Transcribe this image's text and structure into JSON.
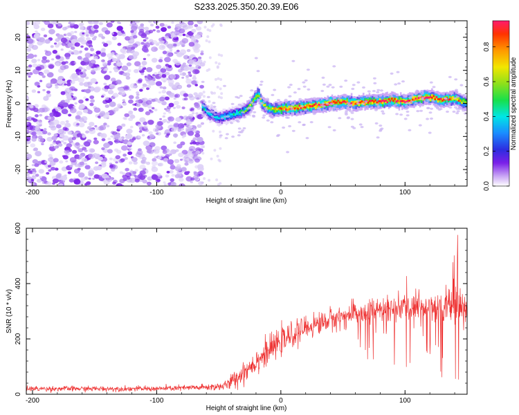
{
  "title": "S233.2025.350.20.39.E06",
  "chart_data": [
    {
      "type": "heatmap",
      "xlabel": "Height of straight line (km)",
      "ylabel": "Frequency (Hz)",
      "xlim": [
        -205,
        150
      ],
      "ylim": [
        -25,
        25
      ],
      "x_ticks": [
        -200,
        -100,
        0,
        100
      ],
      "y_ticks": [
        -20,
        -10,
        0,
        10,
        20
      ],
      "colorbar": {
        "label": "Normalized spectral amplitude",
        "range": [
          0,
          0.95
        ],
        "ticks": [
          0.0,
          0.2,
          0.4,
          0.6,
          0.8
        ],
        "tick_labels": [
          "0.0",
          "0.2",
          "0.4",
          "0.6",
          "0.8"
        ]
      },
      "noise_region_x": [
        -205,
        -63
      ],
      "signal_ridge": {
        "x": [
          -63,
          -58,
          -50,
          -40,
          -30,
          -25,
          -20,
          -18,
          -15,
          -10,
          -5,
          0,
          10,
          20,
          30,
          40,
          50,
          60,
          70,
          80,
          90,
          100,
          110,
          120,
          130,
          140,
          150
        ],
        "frequency": [
          -1,
          -3,
          -4.5,
          -3.5,
          -2.5,
          -1,
          2,
          3,
          0,
          -1.5,
          -2,
          -1.5,
          -1.5,
          -1,
          -0.5,
          0,
          0.5,
          0,
          0.5,
          0.5,
          1,
          0.5,
          1.5,
          2,
          1,
          1.5,
          0
        ],
        "peak_amplitude": [
          0.4,
          0.35,
          0.3,
          0.35,
          0.45,
          0.55,
          0.6,
          0.6,
          0.55,
          0.6,
          0.65,
          0.8,
          0.85,
          0.85,
          0.85,
          0.9,
          0.85,
          0.85,
          0.9,
          0.9,
          0.9,
          0.85,
          0.85,
          0.9,
          0.85,
          0.75,
          0.6
        ]
      }
    },
    {
      "type": "line",
      "xlabel": "Height of straight line (km)",
      "ylabel": "SNR (10 * v/v)",
      "xlim": [
        -205,
        150
      ],
      "ylim": [
        0,
        600
      ],
      "x_ticks": [
        -200,
        -100,
        0,
        100
      ],
      "y_ticks": [
        0,
        200,
        400,
        600
      ],
      "series_color": "#ee3333",
      "envelope": {
        "x": [
          -205,
          -150,
          -100,
          -60,
          -45,
          -35,
          -20,
          0,
          20,
          40,
          60,
          80,
          100,
          120,
          140,
          150
        ],
        "mean": [
          20,
          20,
          20,
          25,
          30,
          60,
          120,
          190,
          240,
          270,
          290,
          305,
          310,
          320,
          320,
          310
        ],
        "spread": [
          8,
          8,
          8,
          10,
          15,
          30,
          40,
          40,
          35,
          35,
          35,
          40,
          45,
          50,
          60,
          60
        ]
      }
    }
  ]
}
